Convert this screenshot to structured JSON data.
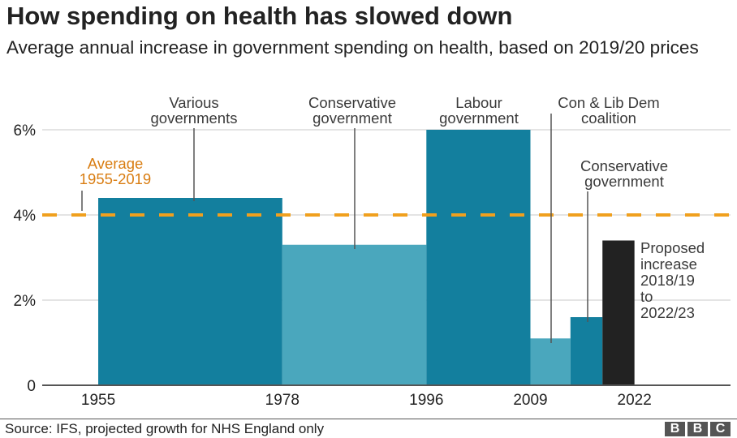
{
  "header": {
    "title": "How spending on health has slowed down",
    "subtitle": "Average annual increase in government spending on health, based on 2019/20 prices"
  },
  "footer": {
    "source": "Source: IFS, projected growth for NHS England only",
    "logo_letters": [
      "B",
      "B",
      "C"
    ]
  },
  "chart_data": {
    "type": "bar",
    "title": "How spending on health has slowed down",
    "subtitle": "Average annual increase in government spending on health, based on 2019/20 prices",
    "xlabel": "",
    "ylabel": "",
    "ylim": [
      0,
      6
    ],
    "xlim": [
      1948,
      2034
    ],
    "grid": true,
    "yticks": [
      {
        "value": 0,
        "label": "0"
      },
      {
        "value": 2,
        "label": "2%"
      },
      {
        "value": 4,
        "label": "4%"
      },
      {
        "value": 6,
        "label": "6%"
      }
    ],
    "xticks": [
      {
        "value": 1955,
        "label": "1955"
      },
      {
        "value": 1978,
        "label": "1978"
      },
      {
        "value": 1996,
        "label": "1996"
      },
      {
        "value": 2009,
        "label": "2009"
      },
      {
        "value": 2022,
        "label": "2022"
      }
    ],
    "bars": [
      {
        "start": 1955,
        "end": 1978,
        "value": 4.4,
        "color": "#137f9e",
        "label": [
          "Various",
          "governments"
        ]
      },
      {
        "start": 1978,
        "end": 1996,
        "value": 3.3,
        "color": "#4aa7bd",
        "label": [
          "Conservative",
          "government"
        ]
      },
      {
        "start": 1996,
        "end": 2009,
        "value": 6.0,
        "color": "#137f9e",
        "label": [
          "Labour",
          "government"
        ]
      },
      {
        "start": 2009,
        "end": 2014,
        "value": 1.1,
        "color": "#4aa7bd",
        "label": [
          "Con & Lib Dem",
          "coalition"
        ]
      },
      {
        "start": 2014,
        "end": 2018,
        "value": 1.6,
        "color": "#137f9e",
        "label": [
          "Conservative",
          "government"
        ]
      },
      {
        "start": 2018,
        "end": 2022,
        "value": 3.4,
        "color": "#222222",
        "label": [
          "Proposed",
          "increase",
          "2018/19",
          "to",
          "2022/23"
        ]
      }
    ],
    "reference_line": {
      "value": 4,
      "label": [
        "Average",
        "1955-2019"
      ],
      "color": "#f0a01e",
      "label_color": "#d97d12"
    }
  }
}
